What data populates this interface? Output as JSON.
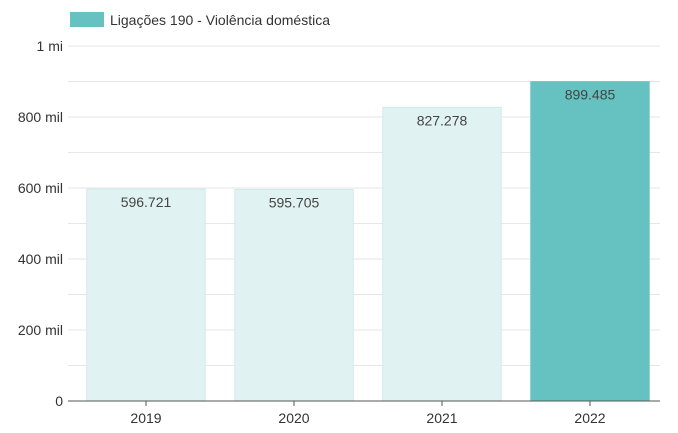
{
  "chart_data": {
    "type": "bar",
    "legend": {
      "label": "Ligações 190 - Violência doméstica",
      "color": "#66c2c0",
      "position": "top-left"
    },
    "categories": [
      "2019",
      "2020",
      "2021",
      "2022"
    ],
    "series": [
      {
        "name": "Ligações 190 - Violência doméstica",
        "values": [
          596721,
          595705,
          827278,
          899485
        ],
        "value_labels": [
          "596.721",
          "595.705",
          "827.278",
          "899.485"
        ],
        "highlighted": [
          false,
          false,
          false,
          true
        ]
      }
    ],
    "colors": {
      "highlight": "#66c2c0",
      "faded": "#e1f2f2"
    },
    "ylim": [
      0,
      1000000
    ],
    "yticks": [
      {
        "value": 0,
        "label": "0"
      },
      {
        "value": 200000,
        "label": "200 mil"
      },
      {
        "value": 400000,
        "label": "400 mil"
      },
      {
        "value": 600000,
        "label": "600 mil"
      },
      {
        "value": 800000,
        "label": "800 mil"
      },
      {
        "value": 1000000,
        "label": "1 mi"
      }
    ],
    "minor_grid_step": 100000,
    "grid": true,
    "title": "",
    "xlabel": "",
    "ylabel": ""
  }
}
